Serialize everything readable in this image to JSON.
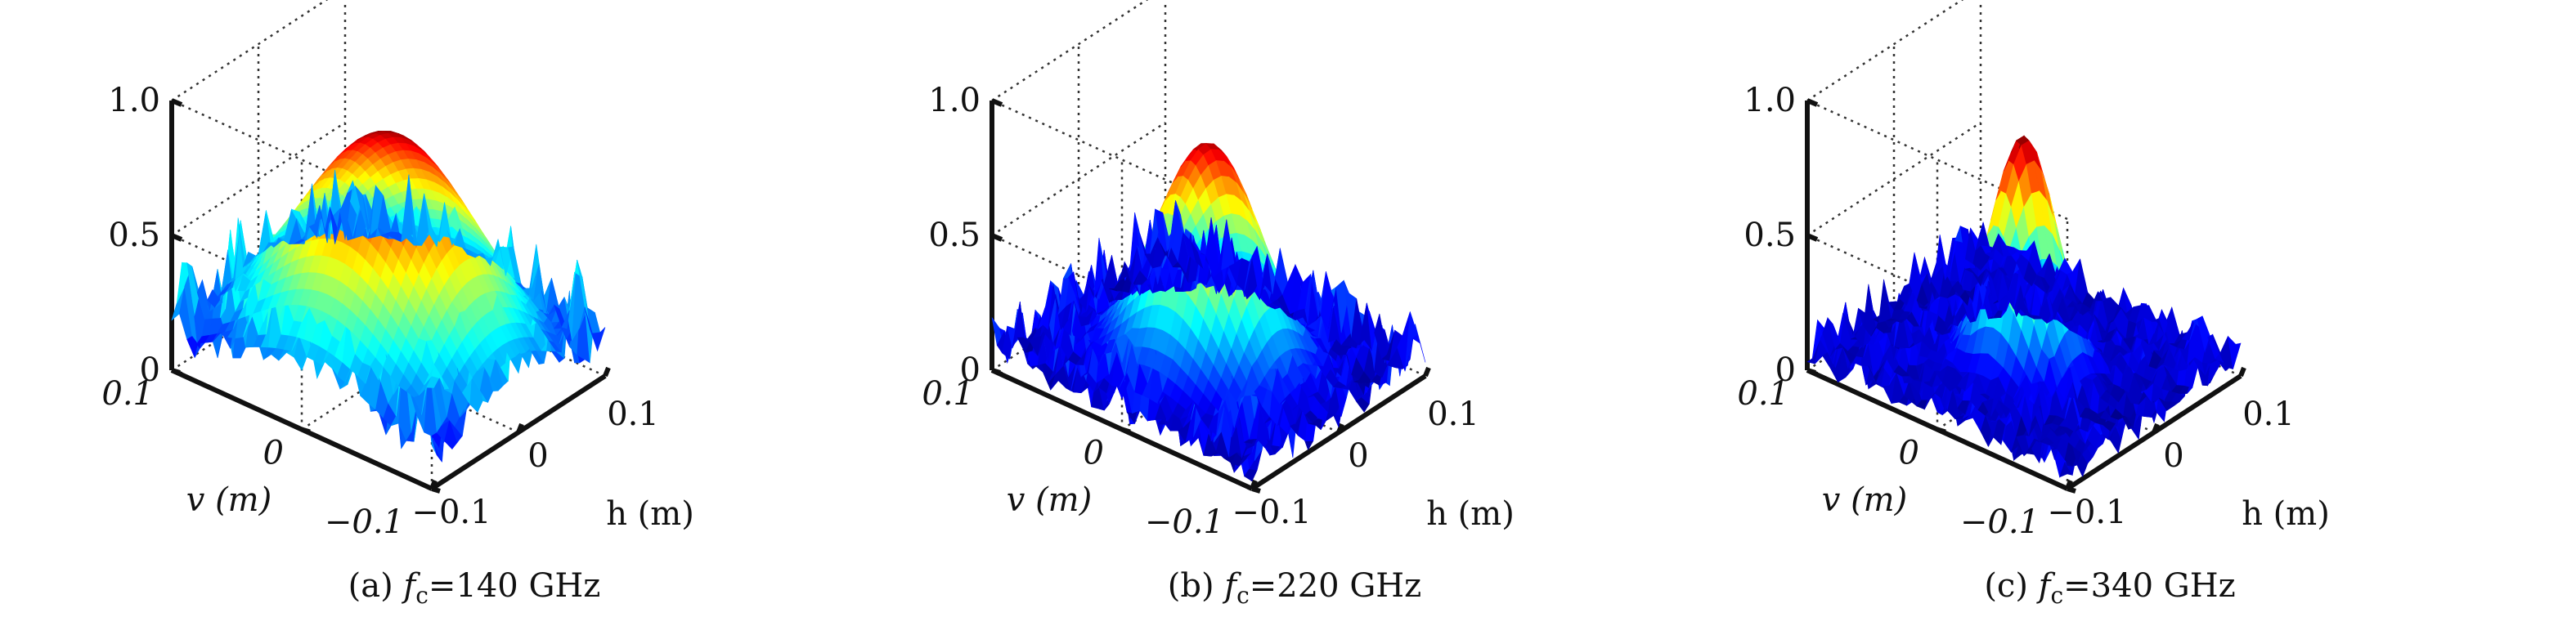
{
  "chart_data": [
    {
      "type": "surface",
      "caption_prefix": "(a) ",
      "caption_symbol": "f",
      "caption_sub": "c",
      "caption_suffix": "=140 GHz",
      "zlim": [
        0,
        1.0
      ],
      "z_ticks": [
        "0",
        "0.5",
        "1.0"
      ],
      "v_ticks": [
        "0.1",
        "0",
        "−0.1"
      ],
      "h_ticks": [
        "−0.1",
        "0",
        "0.1"
      ],
      "v_label": "v (m)",
      "h_label": "h (m)",
      "peak": 0.88,
      "sidelobe_level": 0.3,
      "mainlobe_width": 0.06,
      "colormap": "jet"
    },
    {
      "type": "surface",
      "caption_prefix": "(b) ",
      "caption_symbol": "f",
      "caption_sub": "c",
      "caption_suffix": "=220 GHz",
      "zlim": [
        0,
        1.0
      ],
      "z_ticks": [
        "0",
        "0.5",
        "1.0"
      ],
      "v_ticks": [
        "0.1",
        "0",
        "−0.1"
      ],
      "h_ticks": [
        "−0.1",
        "0",
        "0.1"
      ],
      "v_label": "v (m)",
      "h_label": "h (m)",
      "peak": 0.85,
      "sidelobe_level": 0.22,
      "mainlobe_width": 0.035,
      "colormap": "jet"
    },
    {
      "type": "surface",
      "caption_prefix": "(c) ",
      "caption_symbol": "f",
      "caption_sub": "c",
      "caption_suffix": "=340 GHz",
      "zlim": [
        0,
        1.0
      ],
      "z_ticks": [
        "0",
        "0.5",
        "1.0"
      ],
      "v_ticks": [
        "0.1",
        "0",
        "−0.1"
      ],
      "h_ticks": [
        "−0.1",
        "0",
        "0.1"
      ],
      "v_label": "v (m)",
      "h_label": "h (m)",
      "peak": 0.88,
      "sidelobe_level": 0.15,
      "mainlobe_width": 0.022,
      "colormap": "jet"
    }
  ]
}
